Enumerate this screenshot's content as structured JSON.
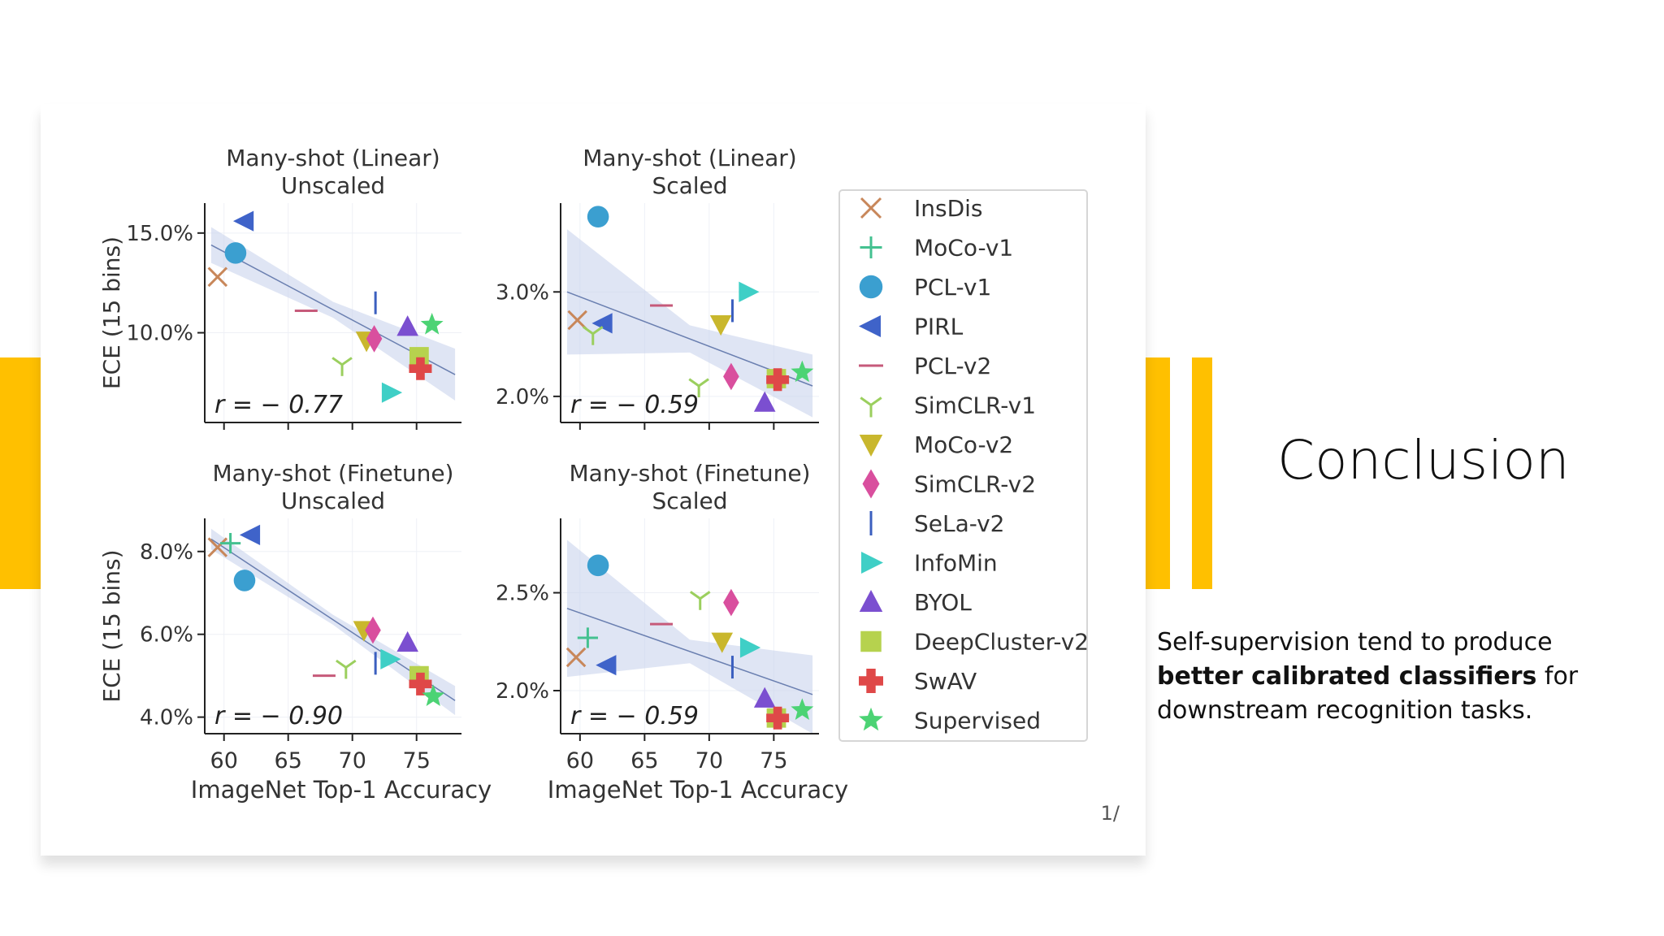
{
  "slide": {
    "title": "Conclusion",
    "body_before": "Self-supervision tend to produce ",
    "body_bold": "better calibrated classifiers",
    "body_after": " for downstream recognition tasks.",
    "page_number": "1/",
    "accent_color": "#ffc000"
  },
  "chart_data": [
    {
      "type": "scatter",
      "title": "Many-shot (Linear)",
      "subtitle": "Unscaled",
      "xlabel": "",
      "ylabel": "ECE (15 bins)",
      "xlim": [
        58.5,
        78.5
      ],
      "ylim": [
        5.5,
        16.5
      ],
      "xticks": [
        60,
        65,
        70,
        75
      ],
      "yticks": [
        {
          "v": 10,
          "label": "10.0%"
        },
        {
          "v": 15,
          "label": "15.0%"
        }
      ],
      "annotation": "r = − 0.77",
      "fit": [
        [
          59,
          14.4
        ],
        [
          78,
          7.9
        ]
      ],
      "band": [
        0.9,
        0.4,
        1.3
      ],
      "points": [
        {
          "series": "InsDis",
          "x": 59.5,
          "y": 12.8
        },
        {
          "series": "PCL-v1",
          "x": 60.9,
          "y": 14.0
        },
        {
          "series": "PIRL",
          "x": 61.6,
          "y": 15.6
        },
        {
          "series": "PCL-v2",
          "x": 66.4,
          "y": 11.1
        },
        {
          "series": "SimCLR-v1",
          "x": 69.2,
          "y": 8.4
        },
        {
          "series": "MoCo-v2",
          "x": 71.1,
          "y": 9.6
        },
        {
          "series": "SimCLR-v2",
          "x": 71.7,
          "y": 9.7
        },
        {
          "series": "SeLa-v2",
          "x": 71.8,
          "y": 11.5
        },
        {
          "series": "InfoMin",
          "x": 73.0,
          "y": 7.0
        },
        {
          "series": "BYOL",
          "x": 74.3,
          "y": 10.3
        },
        {
          "series": "DeepCluster-v2",
          "x": 75.2,
          "y": 8.8
        },
        {
          "series": "SwAV",
          "x": 75.3,
          "y": 8.2
        },
        {
          "series": "Supervised",
          "x": 76.2,
          "y": 10.4
        }
      ]
    },
    {
      "type": "scatter",
      "title": "Many-shot (Linear)",
      "subtitle": "Scaled",
      "xlabel": "",
      "ylabel": "",
      "xlim": [
        58.5,
        78.5
      ],
      "ylim": [
        1.75,
        3.85
      ],
      "xticks": [
        60,
        65,
        70,
        75
      ],
      "yticks": [
        {
          "v": 2.0,
          "label": "2.0%"
        },
        {
          "v": 3.0,
          "label": "3.0%"
        }
      ],
      "annotation": "r = − 0.59",
      "fit": [
        [
          59,
          3.0
        ],
        [
          78,
          2.1
        ]
      ],
      "band": [
        0.6,
        0.13,
        0.3
      ],
      "points": [
        {
          "series": "InsDis",
          "x": 59.8,
          "y": 2.73
        },
        {
          "series": "PCL-v1",
          "x": 61.4,
          "y": 3.72
        },
        {
          "series": "PIRL",
          "x": 61.8,
          "y": 2.7
        },
        {
          "series": "SimCLR-v1",
          "x": 61.0,
          "y": 2.6
        },
        {
          "series": "PCL-v2",
          "x": 66.3,
          "y": 2.87
        },
        {
          "series": "MoCo-v2",
          "x": 70.9,
          "y": 2.69
        },
        {
          "series": "SimCLR-v2",
          "x": 71.7,
          "y": 2.19
        },
        {
          "series": "SeLa-v2",
          "x": 71.8,
          "y": 2.82
        },
        {
          "series": "InfoMin",
          "x": 73.0,
          "y": 3.0
        },
        {
          "series": "BYOL",
          "x": 74.3,
          "y": 1.94
        },
        {
          "series": "DeepCluster-v2",
          "x": 75.2,
          "y": 2.17
        },
        {
          "series": "SwAV",
          "x": 75.3,
          "y": 2.16
        },
        {
          "series": "Supervised",
          "x": 77.2,
          "y": 2.23
        },
        {
          "series": "SimCLR-v1",
          "x": 69.2,
          "y": 2.1
        }
      ]
    },
    {
      "type": "scatter",
      "title": "Many-shot (Finetune)",
      "subtitle": "Unscaled",
      "xlabel": "ImageNet Top-1 Accuracy",
      "ylabel": "ECE (15 bins)",
      "xlim": [
        58.5,
        78.5
      ],
      "ylim": [
        3.6,
        8.8
      ],
      "xticks": [
        60,
        65,
        70,
        75
      ],
      "yticks": [
        {
          "v": 4.0,
          "label": "4.0%"
        },
        {
          "v": 6.0,
          "label": "6.0%"
        },
        {
          "v": 8.0,
          "label": "8.0%"
        }
      ],
      "annotation": "r = − 0.90",
      "fit": [
        [
          59,
          8.3
        ],
        [
          78,
          4.4
        ]
      ],
      "band": [
        0.25,
        0.12,
        0.35
      ],
      "points": [
        {
          "series": "InsDis",
          "x": 59.5,
          "y": 8.1
        },
        {
          "series": "MoCo-v1",
          "x": 60.5,
          "y": 8.2
        },
        {
          "series": "PCL-v1",
          "x": 61.6,
          "y": 7.3
        },
        {
          "series": "PIRL",
          "x": 62.1,
          "y": 8.4
        },
        {
          "series": "PCL-v2",
          "x": 67.8,
          "y": 5.0
        },
        {
          "series": "SimCLR-v1",
          "x": 69.5,
          "y": 5.2
        },
        {
          "series": "MoCo-v2",
          "x": 70.9,
          "y": 6.1
        },
        {
          "series": "SimCLR-v2",
          "x": 71.6,
          "y": 6.1
        },
        {
          "series": "SeLa-v2",
          "x": 71.8,
          "y": 5.3
        },
        {
          "series": "InfoMin",
          "x": 72.9,
          "y": 5.4
        },
        {
          "series": "BYOL",
          "x": 74.3,
          "y": 5.8
        },
        {
          "series": "DeepCluster-v2",
          "x": 75.2,
          "y": 5.0
        },
        {
          "series": "SwAV",
          "x": 75.3,
          "y": 4.8
        },
        {
          "series": "Supervised",
          "x": 76.3,
          "y": 4.5
        }
      ]
    },
    {
      "type": "scatter",
      "title": "Many-shot (Finetune)",
      "subtitle": "Scaled",
      "xlabel": "ImageNet Top-1 Accuracy",
      "ylabel": "",
      "xlim": [
        58.5,
        78.5
      ],
      "ylim": [
        1.78,
        2.88
      ],
      "xticks": [
        60,
        65,
        70,
        75
      ],
      "yticks": [
        {
          "v": 2.0,
          "label": "2.0%"
        },
        {
          "v": 2.5,
          "label": "2.5%"
        }
      ],
      "annotation": "r = − 0.59",
      "fit": [
        [
          59,
          2.42
        ],
        [
          78,
          1.98
        ]
      ],
      "band": [
        0.35,
        0.06,
        0.2
      ],
      "points": [
        {
          "series": "InsDis",
          "x": 59.7,
          "y": 2.17
        },
        {
          "series": "MoCo-v1",
          "x": 60.6,
          "y": 2.27
        },
        {
          "series": "PCL-v1",
          "x": 61.4,
          "y": 2.64
        },
        {
          "series": "PIRL",
          "x": 62.1,
          "y": 2.13
        },
        {
          "series": "PCL-v2",
          "x": 66.3,
          "y": 2.34
        },
        {
          "series": "SimCLR-v1",
          "x": 69.3,
          "y": 2.47
        },
        {
          "series": "MoCo-v2",
          "x": 71.0,
          "y": 2.25
        },
        {
          "series": "SimCLR-v2",
          "x": 71.7,
          "y": 2.45
        },
        {
          "series": "SeLa-v2",
          "x": 71.8,
          "y": 2.12
        },
        {
          "series": "InfoMin",
          "x": 73.1,
          "y": 2.22
        },
        {
          "series": "BYOL",
          "x": 74.3,
          "y": 1.96
        },
        {
          "series": "DeepCluster-v2",
          "x": 75.2,
          "y": 1.86
        },
        {
          "series": "SwAV",
          "x": 75.3,
          "y": 1.86
        },
        {
          "series": "Supervised",
          "x": 77.2,
          "y": 1.9
        }
      ]
    }
  ],
  "legend": [
    {
      "name": "InsDis",
      "marker": "x",
      "color": "#c8875a"
    },
    {
      "name": "MoCo-v1",
      "marker": "plus",
      "color": "#44c190"
    },
    {
      "name": "PCL-v1",
      "marker": "circle",
      "color": "#3b9fd0"
    },
    {
      "name": "PIRL",
      "marker": "triangle-left",
      "color": "#3f63c9"
    },
    {
      "name": "PCL-v2",
      "marker": "hline",
      "color": "#c65a7a"
    },
    {
      "name": "SimCLR-v1",
      "marker": "tri-down",
      "color": "#9bcf5e"
    },
    {
      "name": "MoCo-v2",
      "marker": "triangle-down",
      "color": "#c9b72d"
    },
    {
      "name": "SimCLR-v2",
      "marker": "diamond",
      "color": "#d94f9e"
    },
    {
      "name": "SeLa-v2",
      "marker": "vline",
      "color": "#3b5fbf"
    },
    {
      "name": "InfoMin",
      "marker": "triangle-right",
      "color": "#3fcfc6"
    },
    {
      "name": "BYOL",
      "marker": "triangle-up",
      "color": "#7b4fd0"
    },
    {
      "name": "DeepCluster-v2",
      "marker": "square",
      "color": "#b6d24e"
    },
    {
      "name": "SwAV",
      "marker": "cross",
      "color": "#df4848"
    },
    {
      "name": "Supervised",
      "marker": "star",
      "color": "#4cd374"
    }
  ]
}
